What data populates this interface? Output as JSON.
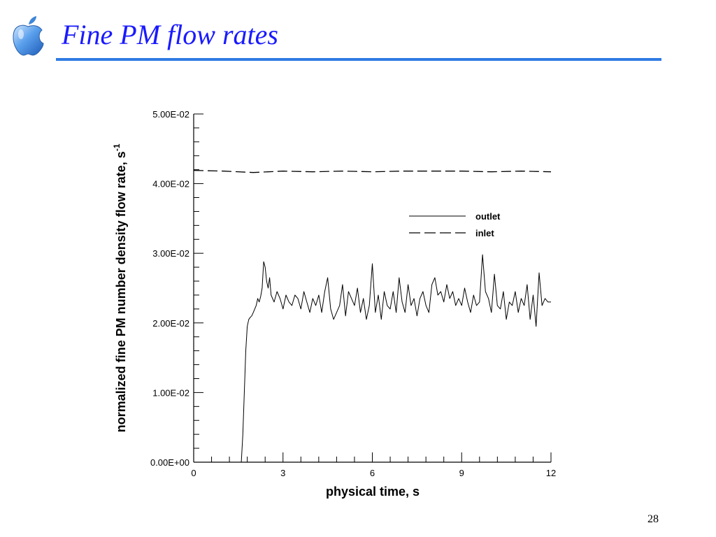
{
  "slide": {
    "title": "Fine PM flow rates",
    "page_number": "28",
    "title_color": "#1a1aff",
    "rule_color": "#2f7be3",
    "logo_icon": "apple-logo-icon"
  },
  "chart_data": {
    "type": "line",
    "title": "",
    "xlabel": "physical time, s",
    "ylabel": "normalized fine PM number density  flow rate, s",
    "ylabel_superscript": "-1",
    "xlim": [
      0,
      12
    ],
    "ylim": [
      0,
      0.05
    ],
    "x_ticks": [
      0,
      3,
      6,
      9,
      12
    ],
    "x_tick_labels": [
      "0",
      "3",
      "6",
      "9",
      "12"
    ],
    "y_ticks": [
      0,
      0.01,
      0.02,
      0.03,
      0.04,
      0.05
    ],
    "y_tick_labels": [
      "0.00E+00",
      "1.00E-02",
      "2.00E-02",
      "3.00E-02",
      "4.00E-02",
      "5.00E-02"
    ],
    "grid": false,
    "legend_position": "upper-right",
    "series": [
      {
        "name": "outlet",
        "style": "solid",
        "x": [
          0,
          1.6,
          1.65,
          1.7,
          1.75,
          1.8,
          1.85,
          1.9,
          1.95,
          2.0,
          2.05,
          2.1,
          2.15,
          2.2,
          2.25,
          2.3,
          2.35,
          2.4,
          2.45,
          2.5,
          2.55,
          2.6,
          2.7,
          2.8,
          2.9,
          3.0,
          3.1,
          3.2,
          3.3,
          3.4,
          3.5,
          3.6,
          3.7,
          3.8,
          3.9,
          4.0,
          4.1,
          4.2,
          4.3,
          4.4,
          4.5,
          4.6,
          4.7,
          4.8,
          4.9,
          5.0,
          5.1,
          5.2,
          5.3,
          5.4,
          5.5,
          5.6,
          5.7,
          5.8,
          5.9,
          6.0,
          6.1,
          6.2,
          6.3,
          6.4,
          6.5,
          6.6,
          6.7,
          6.8,
          6.9,
          7.0,
          7.1,
          7.2,
          7.3,
          7.4,
          7.5,
          7.6,
          7.7,
          7.8,
          7.9,
          8.0,
          8.1,
          8.2,
          8.3,
          8.4,
          8.5,
          8.6,
          8.7,
          8.8,
          8.9,
          9.0,
          9.1,
          9.2,
          9.3,
          9.4,
          9.5,
          9.6,
          9.7,
          9.8,
          9.9,
          10.0,
          10.1,
          10.2,
          10.3,
          10.4,
          10.5,
          10.6,
          10.7,
          10.8,
          10.9,
          11.0,
          11.1,
          11.2,
          11.3,
          11.4,
          11.5,
          11.6,
          11.7,
          11.8,
          11.9,
          12.0
        ],
        "y": [
          0,
          0,
          0.004,
          0.01,
          0.016,
          0.0195,
          0.0205,
          0.0208,
          0.021,
          0.0215,
          0.022,
          0.0225,
          0.0235,
          0.023,
          0.0238,
          0.025,
          0.0288,
          0.028,
          0.026,
          0.025,
          0.0265,
          0.024,
          0.023,
          0.0245,
          0.0235,
          0.022,
          0.024,
          0.023,
          0.0225,
          0.024,
          0.0235,
          0.022,
          0.0245,
          0.023,
          0.0215,
          0.0235,
          0.0225,
          0.024,
          0.0215,
          0.0245,
          0.0265,
          0.022,
          0.0205,
          0.0215,
          0.0225,
          0.0255,
          0.021,
          0.0245,
          0.0235,
          0.0225,
          0.025,
          0.0215,
          0.0235,
          0.0205,
          0.0225,
          0.0285,
          0.0215,
          0.024,
          0.0205,
          0.0245,
          0.0225,
          0.022,
          0.0245,
          0.0215,
          0.0265,
          0.023,
          0.0215,
          0.0255,
          0.0225,
          0.0235,
          0.021,
          0.0235,
          0.0245,
          0.0225,
          0.0215,
          0.0255,
          0.0265,
          0.024,
          0.0245,
          0.023,
          0.0255,
          0.0235,
          0.0245,
          0.0225,
          0.0235,
          0.0225,
          0.025,
          0.023,
          0.0215,
          0.024,
          0.0225,
          0.023,
          0.0298,
          0.0245,
          0.0235,
          0.0215,
          0.027,
          0.0225,
          0.022,
          0.0245,
          0.0205,
          0.023,
          0.0225,
          0.0245,
          0.0215,
          0.0235,
          0.0225,
          0.0255,
          0.0205,
          0.024,
          0.0195,
          0.0272,
          0.0225,
          0.0235,
          0.023,
          0.023
        ]
      },
      {
        "name": "inlet",
        "style": "dashed",
        "x": [
          0,
          1,
          2,
          3,
          4,
          5,
          6,
          7,
          8,
          9,
          10,
          11,
          12
        ],
        "y": [
          0.0419,
          0.0418,
          0.0416,
          0.0418,
          0.0417,
          0.0418,
          0.0417,
          0.0418,
          0.0418,
          0.0418,
          0.0417,
          0.0418,
          0.0417
        ]
      }
    ]
  }
}
